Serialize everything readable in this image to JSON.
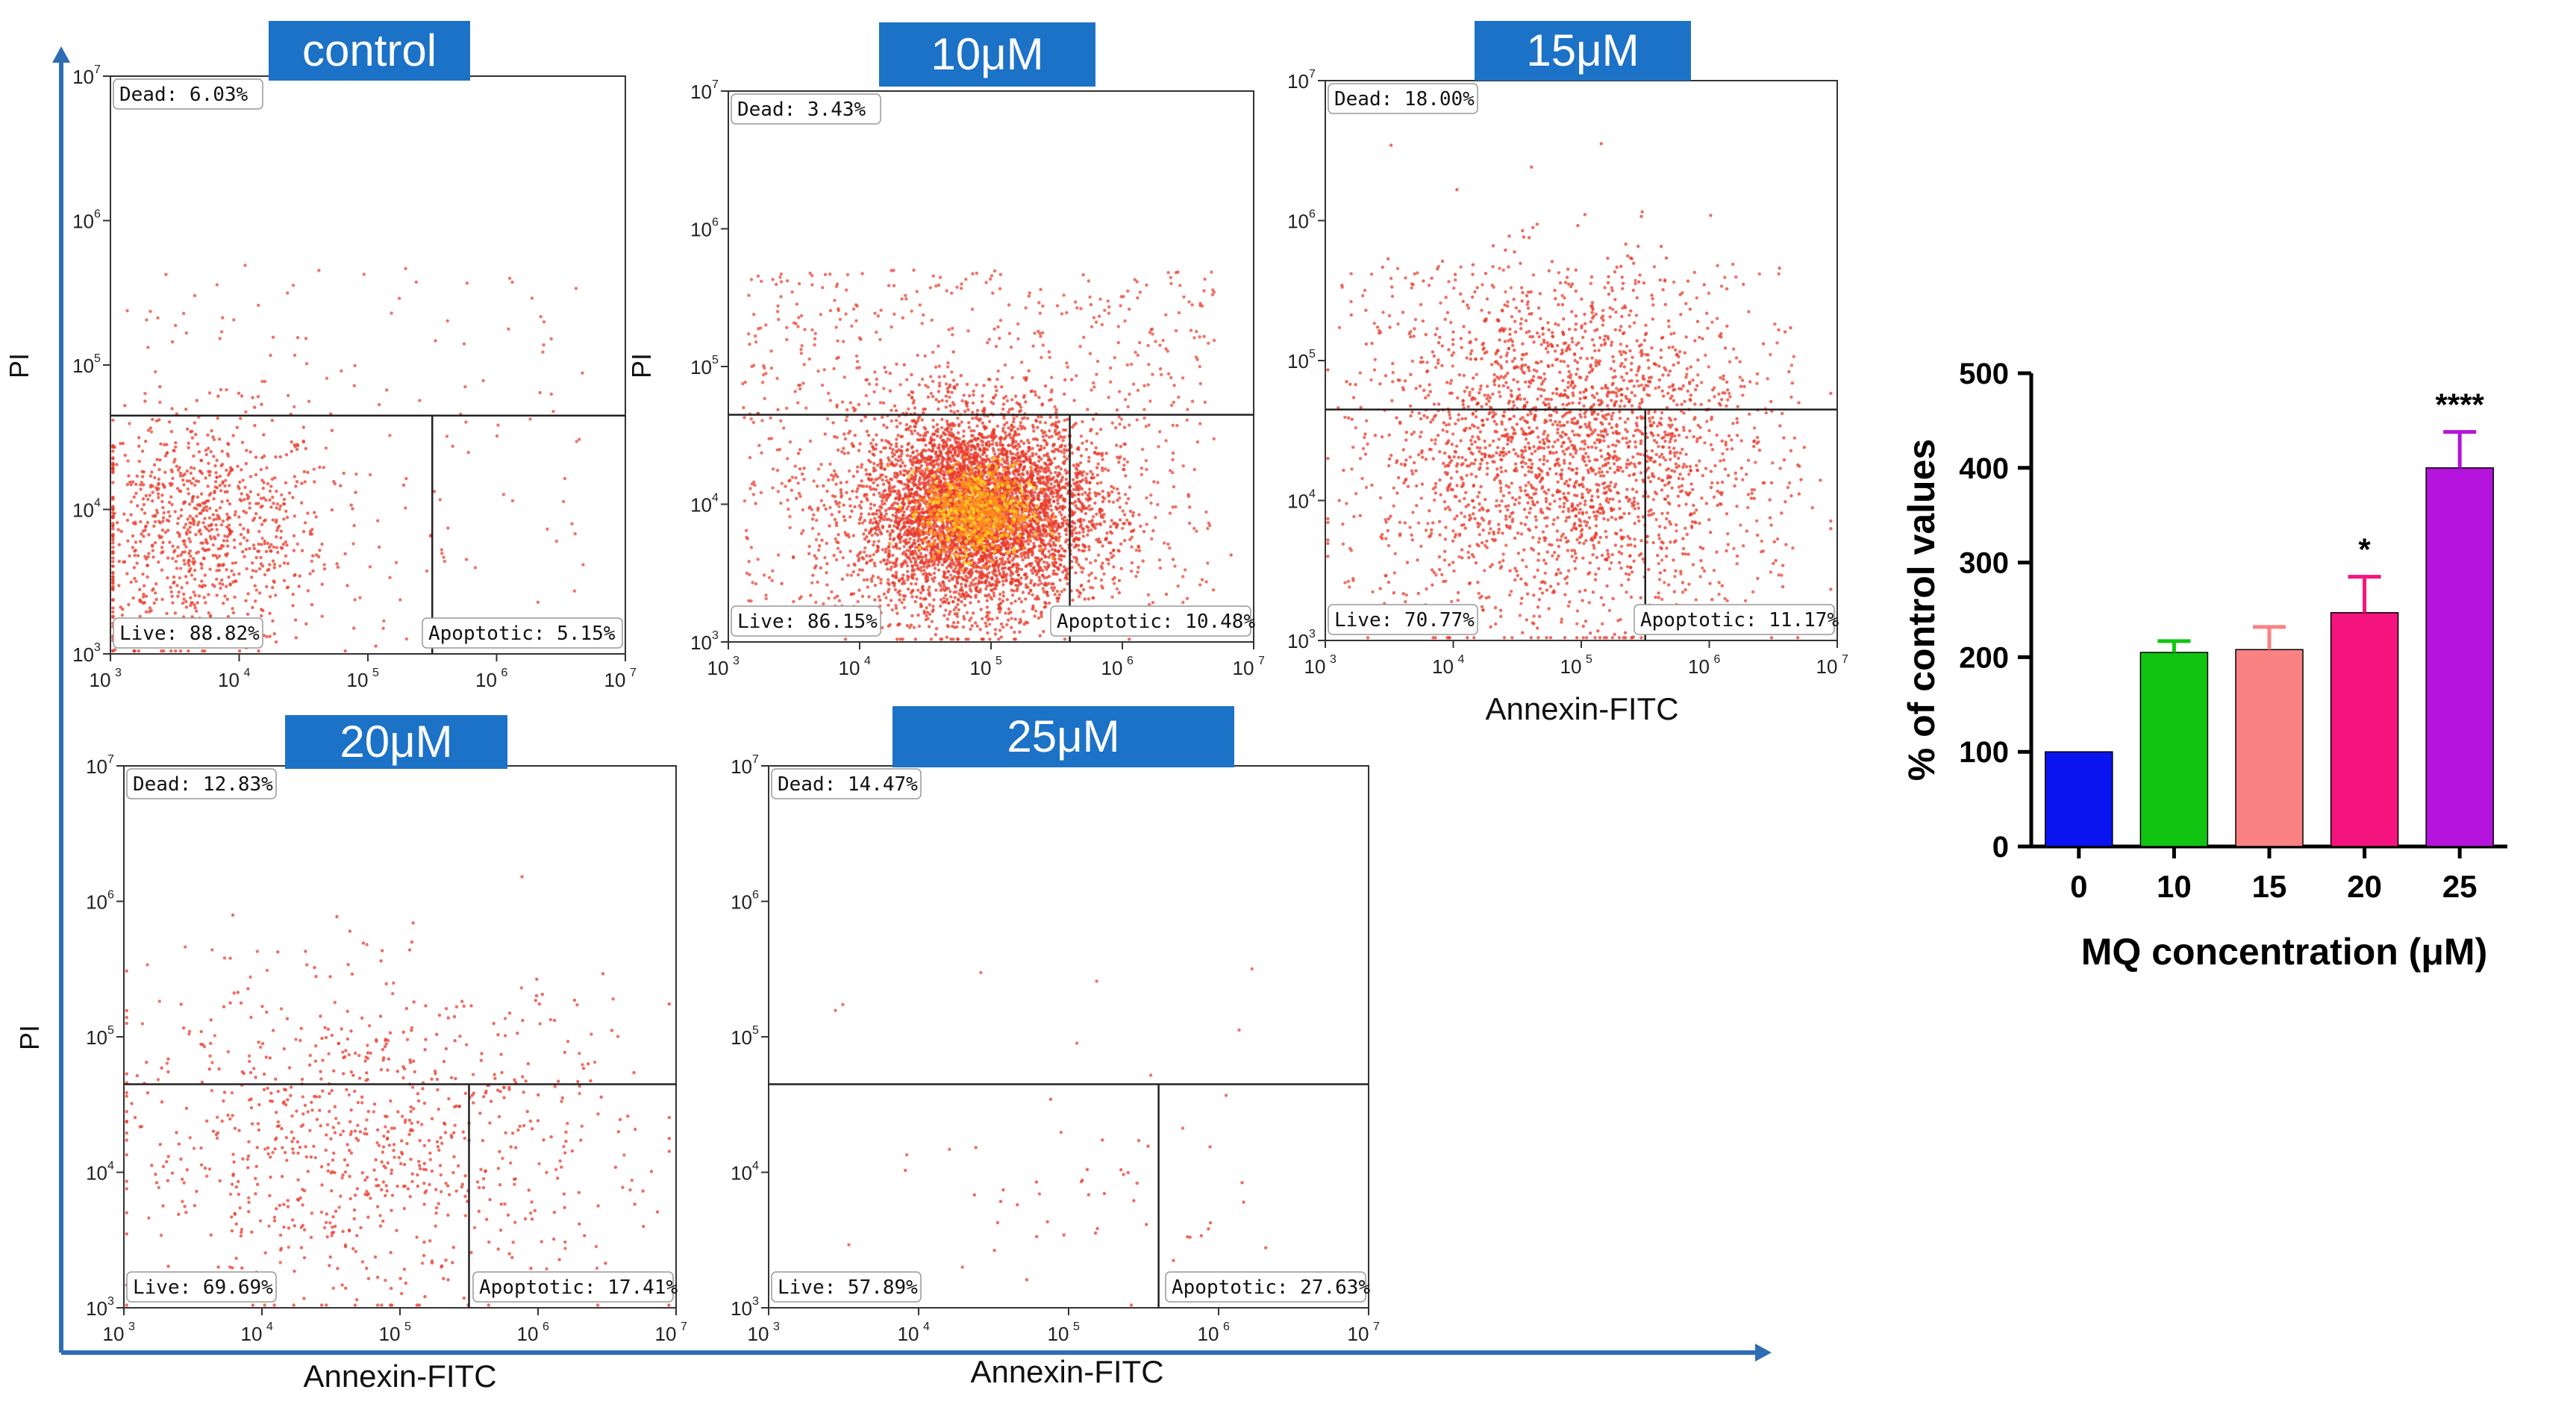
{
  "chart_data": [
    {
      "type": "scatter",
      "panel_title": "control",
      "xlabel": "",
      "ylabel": "PI",
      "x_log_range": [
        3,
        7
      ],
      "y_log_range": [
        3,
        7
      ],
      "quadrants": {
        "dead": "Dead: 6.03%",
        "live": "Live: 88.82%",
        "apoptotic": "Apoptotic: 5.15%"
      },
      "gates": {
        "x": 5.5,
        "y": 4.65
      },
      "density": {
        "center": [
          3.7,
          3.85
        ],
        "spread": [
          0.5,
          0.4
        ],
        "count": 900
      }
    },
    {
      "type": "scatter",
      "panel_title": "10μM",
      "xlabel": "",
      "ylabel": "PI",
      "x_log_range": [
        3,
        7
      ],
      "y_log_range": [
        3,
        7
      ],
      "quadrants": {
        "dead": "Dead: 3.43%",
        "live": "Live: 86.15%",
        "apoptotic": "Apoptotic: 10.48%"
      },
      "gates": {
        "x": 5.6,
        "y": 4.65
      },
      "density": {
        "center": [
          4.9,
          3.95
        ],
        "spread": [
          0.45,
          0.35
        ],
        "count": 5000
      }
    },
    {
      "type": "scatter",
      "panel_title": "15μM",
      "xlabel": "Annexin-FITC",
      "ylabel": "",
      "x_log_range": [
        3,
        7
      ],
      "y_log_range": [
        3,
        7
      ],
      "quadrants": {
        "dead": "Dead: 18.00%",
        "live": "Live: 70.77%",
        "apoptotic": "Apoptotic: 11.17%"
      },
      "gates": {
        "x": 5.5,
        "y": 4.65
      },
      "density": {
        "center": [
          4.9,
          4.4
        ],
        "spread": [
          0.7,
          0.6
        ],
        "count": 2200
      }
    },
    {
      "type": "scatter",
      "panel_title": "20μM",
      "xlabel": "Annexin-FITC",
      "ylabel": "PI",
      "x_log_range": [
        3,
        7
      ],
      "y_log_range": [
        3,
        7
      ],
      "quadrants": {
        "dead": "Dead: 12.83%",
        "live": "Live: 69.69%",
        "apoptotic": "Apoptotic: 17.41%"
      },
      "gates": {
        "x": 5.5,
        "y": 4.65
      },
      "density": {
        "center": [
          4.8,
          4.2
        ],
        "spread": [
          0.9,
          0.6
        ],
        "count": 750
      }
    },
    {
      "type": "scatter",
      "panel_title": "25μM",
      "xlabel": "Annexin-FITC",
      "ylabel": "",
      "x_log_range": [
        3,
        7
      ],
      "y_log_range": [
        3,
        7
      ],
      "quadrants": {
        "dead": "Dead: 14.47%",
        "live": "Live: 57.89%",
        "apoptotic": "Apoptotic: 27.63%"
      },
      "gates": {
        "x": 5.6,
        "y": 4.65
      },
      "density": {
        "center": [
          5.1,
          3.8
        ],
        "spread": [
          0.5,
          0.3
        ],
        "count": 40
      }
    },
    {
      "type": "bar",
      "categories": [
        "0",
        "10",
        "15",
        "20",
        "25"
      ],
      "values": [
        100,
        205,
        208,
        247,
        400
      ],
      "errors": [
        0,
        12,
        24,
        38,
        38
      ],
      "significance": [
        "",
        "",
        "",
        "*",
        "****"
      ],
      "colors": [
        "#0a14f0",
        "#12c412",
        "#fa8282",
        "#f5147d",
        "#b414dc"
      ],
      "xlabel": "MQ concentration (μM)",
      "ylabel": "% of control values",
      "ylim": [
        0,
        500
      ],
      "yticks": [
        0,
        100,
        200,
        300,
        400,
        500
      ]
    }
  ],
  "tick_labels": {
    "x": [
      "10",
      "10",
      "10",
      "10",
      "10"
    ],
    "exponents": [
      "3",
      "4",
      "5",
      "6",
      "7"
    ]
  },
  "colors": {
    "dot": "#e83a2a",
    "dense": "#ffd21e",
    "title_box": "#1c72c6",
    "arrow": "#2e6db4"
  }
}
